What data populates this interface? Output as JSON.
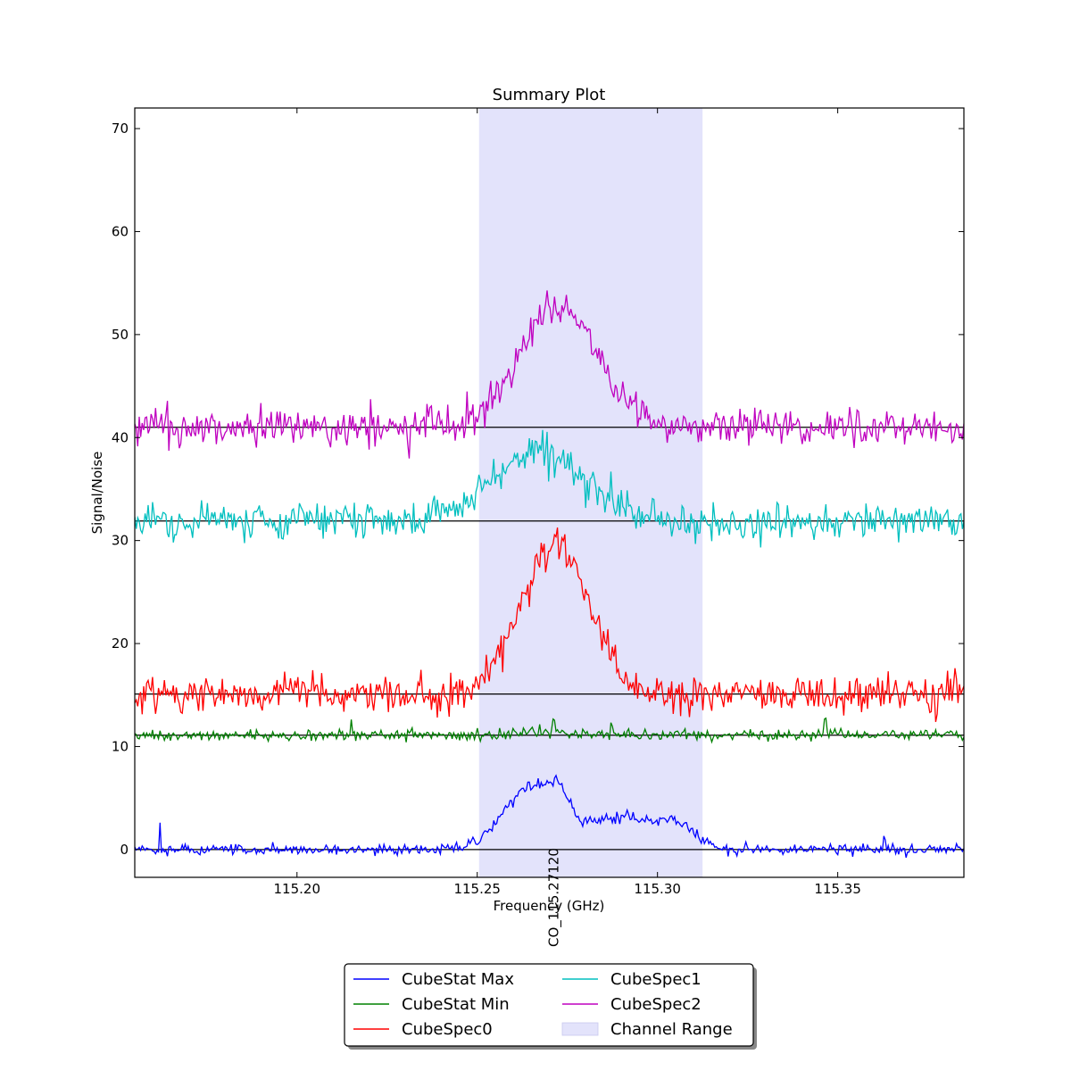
{
  "chart_data": {
    "type": "line",
    "title": "Summary Plot",
    "xlabel": "Frequency (GHz)",
    "ylabel": "Signal/Noise",
    "xlim": [
      115.155,
      115.385
    ],
    "ylim": [
      -2.7,
      72
    ],
    "x_ticks": [
      115.2,
      115.25,
      115.3,
      115.35
    ],
    "x_tick_labels": [
      "115.20",
      "115.25",
      "115.30",
      "115.35"
    ],
    "y_ticks": [
      0,
      10,
      20,
      30,
      40,
      50,
      60,
      70
    ],
    "y_tick_labels": [
      "0",
      "10",
      "20",
      "30",
      "40",
      "50",
      "60",
      "70"
    ],
    "grid": false,
    "legend_position": "below-center",
    "channel_range": {
      "name": "Channel Range",
      "x": [
        115.2505,
        115.3125
      ],
      "color": "#e3e3fb"
    },
    "line_marker": {
      "label": "CO_115.27120",
      "x": 115.2712
    },
    "series": [
      {
        "name": "CubeStat Max",
        "color": "#0000ff",
        "baseline": 0,
        "profile": "two-component",
        "components": [
          {
            "center": 115.2645,
            "sigma": 0.0075,
            "amplitude": 5.8
          },
          {
            "center": 115.2725,
            "sigma": 0.003,
            "amplitude": 2.5
          },
          {
            "center": 115.2908,
            "sigma": 0.0105,
            "amplitude": 3.2
          },
          {
            "center": 115.306,
            "sigma": 0.0045,
            "amplitude": 1.5
          }
        ],
        "noise": 0.35,
        "spikes": [
          [
            115.162,
            2.5
          ],
          [
            115.169,
            0.8
          ],
          [
            115.363,
            1.5
          ]
        ]
      },
      {
        "name": "CubeStat Min",
        "color": "#008000",
        "baseline": 11.1,
        "peak_center": 115.2712,
        "peak_sigma": 0.01,
        "peak_amplitude": 0.3,
        "noise": 0.35,
        "spikes": [
          [
            115.215,
            1.7
          ],
          [
            115.2712,
            1.2
          ],
          [
            115.2872,
            1.0
          ],
          [
            115.3465,
            1.6
          ]
        ]
      },
      {
        "name": "CubeSpec0",
        "color": "#ff0000",
        "baseline": 15.1,
        "peak_center": 115.2717,
        "peak_sigma": 0.0095,
        "peak_amplitude": 14.5,
        "noise": 1.2,
        "spikes": [
          [
            115.2742,
            1.2
          ]
        ]
      },
      {
        "name": "CubeSpec1",
        "color": "#00bfbf",
        "baseline": 31.9,
        "peak_center": 115.2668,
        "peak_sigma": 0.0125,
        "peak_amplitude": 6.8,
        "noise": 1.2,
        "spikes": []
      },
      {
        "name": "CubeSpec2",
        "color": "#bf00bf",
        "baseline": 41.0,
        "peak_center": 115.2728,
        "peak_sigma": 0.0105,
        "peak_amplitude": 12.0,
        "noise": 1.2,
        "spikes": [
          [
            115.2692,
            1.5
          ]
        ]
      }
    ]
  }
}
